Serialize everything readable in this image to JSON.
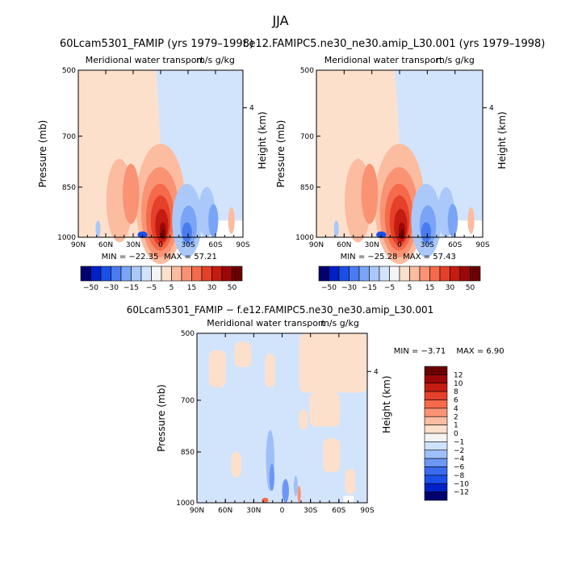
{
  "figure": {
    "title": "JJA",
    "diff_title": "60Lcam5301_FAMIP − f.e12.FAMIPC5.ne30_ne30.amip_L30.001"
  },
  "colors": {
    "main_scale": [
      "#00006e",
      "#0020c8",
      "#1a4fe8",
      "#4a7cf0",
      "#7aa4f6",
      "#aac8fa",
      "#d2e4fc",
      "#f4f4f4",
      "#fde0cc",
      "#fcbca0",
      "#fa9274",
      "#f46a4a",
      "#e4402a",
      "#c41c10",
      "#9c0808",
      "#6a0000"
    ],
    "diff_scale": [
      "#00006e",
      "#0020c8",
      "#1a4fe8",
      "#3a6af0",
      "#6a98f4",
      "#9ec0f8",
      "#cfe2fc",
      "#f4f4f4",
      "#fde0cc",
      "#fcbca0",
      "#fa9274",
      "#f46a4a",
      "#e4402a",
      "#c41c10",
      "#9c0808",
      "#6a0000"
    ]
  },
  "chart_data": [
    {
      "type": "heatmap",
      "title": "60Lcam5301_FAMIP (yrs 1979–1998)",
      "subtitle": "Meridional water transport",
      "units": "m/s g/kg",
      "xlabel": "",
      "ylabel": "Pressure (mb)",
      "ylabel_right": "Height (km)",
      "x_ticks": [
        "90N",
        "60N",
        "30N",
        "0",
        "30S",
        "60S",
        "90S"
      ],
      "y_ticks": [
        "500",
        "700",
        "850",
        "1000"
      ],
      "right_ticks": [
        "4"
      ],
      "ylim": [
        1000,
        500
      ],
      "min_label": "MIN = −22.35",
      "max_label": "MAX = 57.21",
      "min": -22.35,
      "max": 57.21,
      "colorbar_labels": [
        "−50",
        "−30",
        "−15",
        "−5",
        "5",
        "15",
        "30",
        "50"
      ]
    },
    {
      "type": "heatmap",
      "title": "f.e12.FAMIPC5.ne30_ne30.amip_L30.001 (yrs 1979–1998)",
      "subtitle": "Meridional water transport",
      "units": "m/s g/kg",
      "xlabel": "",
      "ylabel": "Pressure (mb)",
      "ylabel_right": "Height (km)",
      "x_ticks": [
        "90N",
        "60N",
        "30N",
        "0",
        "30S",
        "60S",
        "90S"
      ],
      "y_ticks": [
        "500",
        "700",
        "850",
        "1000"
      ],
      "right_ticks": [
        "4"
      ],
      "ylim": [
        1000,
        500
      ],
      "min_label": "MIN = −25.28",
      "max_label": "MAX = 57.43",
      "min": -25.28,
      "max": 57.43,
      "colorbar_labels": [
        "−50",
        "−30",
        "−15",
        "−5",
        "5",
        "15",
        "30",
        "50"
      ]
    },
    {
      "type": "heatmap",
      "title": "60Lcam5301_FAMIP − f.e12.FAMIPC5.ne30_ne30.amip_L30.001",
      "subtitle": "Meridional water transport",
      "units": "m/s g/kg",
      "xlabel": "",
      "ylabel": "Pressure (mb)",
      "ylabel_right": "Height (km)",
      "x_ticks": [
        "90N",
        "60N",
        "30N",
        "0",
        "30S",
        "60S",
        "90S"
      ],
      "y_ticks": [
        "500",
        "700",
        "850",
        "1000"
      ],
      "right_ticks": [
        "4"
      ],
      "ylim": [
        1000,
        500
      ],
      "min_label": "MIN = −3.71",
      "max_label": "MAX = 6.90",
      "min": -3.71,
      "max": 6.9,
      "colorbar_labels": [
        "12",
        "10",
        "8",
        "6",
        "4",
        "2",
        "1",
        "0",
        "−1",
        "−2",
        "−4",
        "−6",
        "−8",
        "−10",
        "−12"
      ]
    }
  ]
}
